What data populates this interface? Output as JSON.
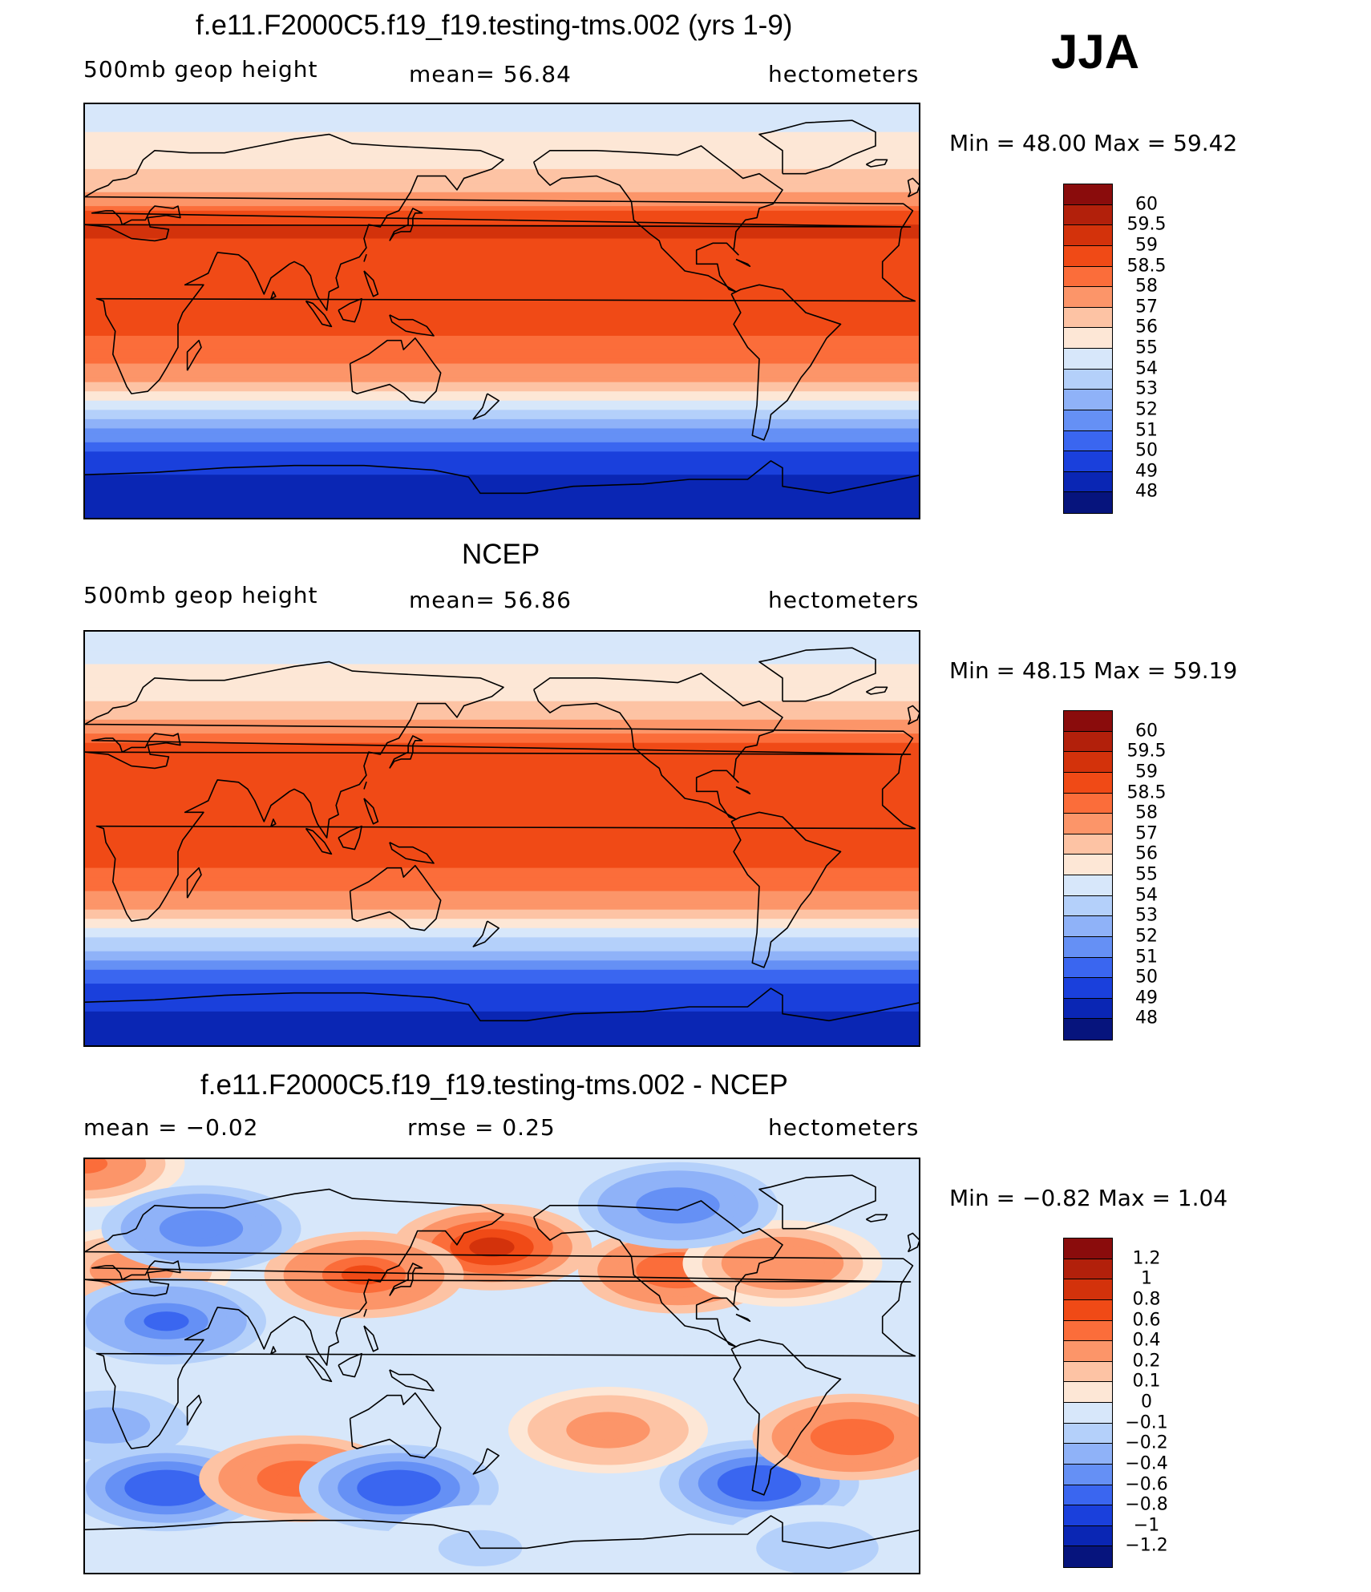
{
  "season_label": "JJA",
  "chart_data": [
    {
      "type": "heatmap",
      "title": "f.e11.F2000C5.f19_f19.testing-tms.002 (yrs 1-9)",
      "variable": "500mb  geop  height",
      "mean_text": "mean=   56.84",
      "units": "hectometers",
      "min_max_text": "Min  =    48.00  Max  =    59.42",
      "min": 48.0,
      "max": 59.42,
      "mean": 56.84,
      "colorbar_levels": [
        "60",
        "59.5",
        "59",
        "58.5",
        "58",
        "57",
        "56",
        "55",
        "54",
        "53",
        "52",
        "51",
        "50",
        "49",
        "48"
      ],
      "colorbar_colors": [
        "#8a0c0c",
        "#b2200b",
        "#d3320b",
        "#f04a16",
        "#fb6d3a",
        "#fc9569",
        "#fdc3a4",
        "#fde7d6",
        "#d7e7fa",
        "#b4d0fa",
        "#8fb2f8",
        "#6590f5",
        "#3a66f0",
        "#1a40dc",
        "#0a26b4",
        "#06147d"
      ],
      "zonal_profile": {
        "lat": [
          90,
          80,
          70,
          60,
          55,
          50,
          45,
          40,
          35,
          30,
          25,
          20,
          10,
          0,
          -10,
          -20,
          -25,
          -30,
          -35,
          -40,
          -45,
          -50,
          -55,
          -60,
          -65,
          -70,
          -80,
          -90
        ],
        "value": [
          54.5,
          54.9,
          55.4,
          56.1,
          56.6,
          57.4,
          58.3,
          58.9,
          59.1,
          58.9,
          58.7,
          58.6,
          58.7,
          58.6,
          58.5,
          58.2,
          57.7,
          56.9,
          55.8,
          54.6,
          53.4,
          52.2,
          51.0,
          50.0,
          49.4,
          48.9,
          48.4,
          48.1
        ]
      }
    },
    {
      "type": "heatmap",
      "title": "NCEP",
      "variable": "500mb  geop  height",
      "mean_text": "mean=   56.86",
      "units": "hectometers",
      "min_max_text": "Min  =    48.15  Max  =    59.19",
      "min": 48.15,
      "max": 59.19,
      "mean": 56.86,
      "colorbar_levels": [
        "60",
        "59.5",
        "59",
        "58.5",
        "58",
        "57",
        "56",
        "55",
        "54",
        "53",
        "52",
        "51",
        "50",
        "49",
        "48"
      ],
      "colorbar_colors": [
        "#8a0c0c",
        "#b2200b",
        "#d3320b",
        "#f04a16",
        "#fb6d3a",
        "#fc9569",
        "#fdc3a4",
        "#fde7d6",
        "#d7e7fa",
        "#b4d0fa",
        "#8fb2f8",
        "#6590f5",
        "#3a66f0",
        "#1a40dc",
        "#0a26b4",
        "#06147d"
      ],
      "zonal_profile": {
        "lat": [
          90,
          80,
          70,
          60,
          55,
          50,
          45,
          40,
          35,
          30,
          25,
          20,
          10,
          0,
          -10,
          -20,
          -25,
          -30,
          -35,
          -40,
          -45,
          -50,
          -55,
          -60,
          -65,
          -70,
          -80,
          -90
        ],
        "value": [
          54.4,
          54.8,
          55.3,
          56.0,
          56.5,
          57.2,
          58.0,
          58.7,
          58.9,
          58.8,
          58.7,
          58.6,
          58.7,
          58.7,
          58.6,
          58.2,
          57.7,
          56.9,
          55.9,
          54.7,
          53.5,
          52.3,
          51.1,
          50.2,
          49.6,
          49.2,
          48.7,
          48.3
        ]
      }
    },
    {
      "type": "heatmap",
      "title": "f.e11.F2000C5.f19_f19.testing-tms.002 - NCEP",
      "mean_text": "mean  =    −0.02",
      "rmse_text": "rmse  =     0.25",
      "units": "hectometers",
      "min_max_text": "Min  =    −0.82  Max  =     1.04",
      "min": -0.82,
      "max": 1.04,
      "mean": -0.02,
      "rmse": 0.25,
      "colorbar_levels": [
        "1.2",
        "1",
        "0.8",
        "0.6",
        "0.4",
        "0.2",
        "0.1",
        "0",
        "−0.1",
        "−0.2",
        "−0.4",
        "−0.6",
        "−0.8",
        "−1",
        "−1.2"
      ],
      "colorbar_colors": [
        "#8a0c0c",
        "#b2200b",
        "#d3320b",
        "#f04a16",
        "#fb6d3a",
        "#fc9569",
        "#fdc3a4",
        "#fde7d6",
        "#d7e7fa",
        "#b4d0fa",
        "#8fb2f8",
        "#6590f5",
        "#3a66f0",
        "#1a40dc",
        "#0a26b4",
        "#06147d"
      ],
      "background_value": -0.05,
      "anomalies": [
        {
          "lon": 0,
          "lat": 88,
          "value": 0.45
        },
        {
          "lon": 175,
          "lat": 52,
          "value": 0.95
        },
        {
          "lon": 120,
          "lat": 40,
          "value": 0.6
        },
        {
          "lon": 255,
          "lat": 42,
          "value": 0.5
        },
        {
          "lon": 300,
          "lat": 45,
          "value": 0.35
        },
        {
          "lon": 20,
          "lat": 42,
          "value": 0.25
        },
        {
          "lon": 50,
          "lat": 60,
          "value": -0.55
        },
        {
          "lon": 255,
          "lat": 70,
          "value": -0.6
        },
        {
          "lon": 35,
          "lat": 20,
          "value": -0.65
        },
        {
          "lon": 10,
          "lat": -25,
          "value": -0.3
        },
        {
          "lon": 35,
          "lat": -52,
          "value": -0.8
        },
        {
          "lon": 92,
          "lat": -48,
          "value": 0.5
        },
        {
          "lon": 135,
          "lat": -52,
          "value": -0.75
        },
        {
          "lon": 290,
          "lat": -50,
          "value": -0.8
        },
        {
          "lon": 330,
          "lat": -30,
          "value": 0.55
        },
        {
          "lon": 225,
          "lat": -27,
          "value": 0.3
        },
        {
          "lon": 315,
          "lat": -78,
          "value": -0.2
        },
        {
          "lon": 170,
          "lat": -78,
          "value": -0.15
        }
      ]
    }
  ]
}
